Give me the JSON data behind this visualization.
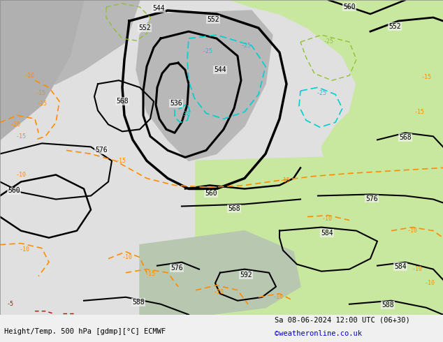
{
  "title_left": "Height/Temp. 500 hPa [gdmp][°C] ECMWF",
  "title_right": "Sa 08-06-2024 12:00 UTC (06+30)",
  "credit": "©weatheronline.co.uk",
  "fig_width": 6.34,
  "fig_height": 4.9,
  "dpi": 100
}
